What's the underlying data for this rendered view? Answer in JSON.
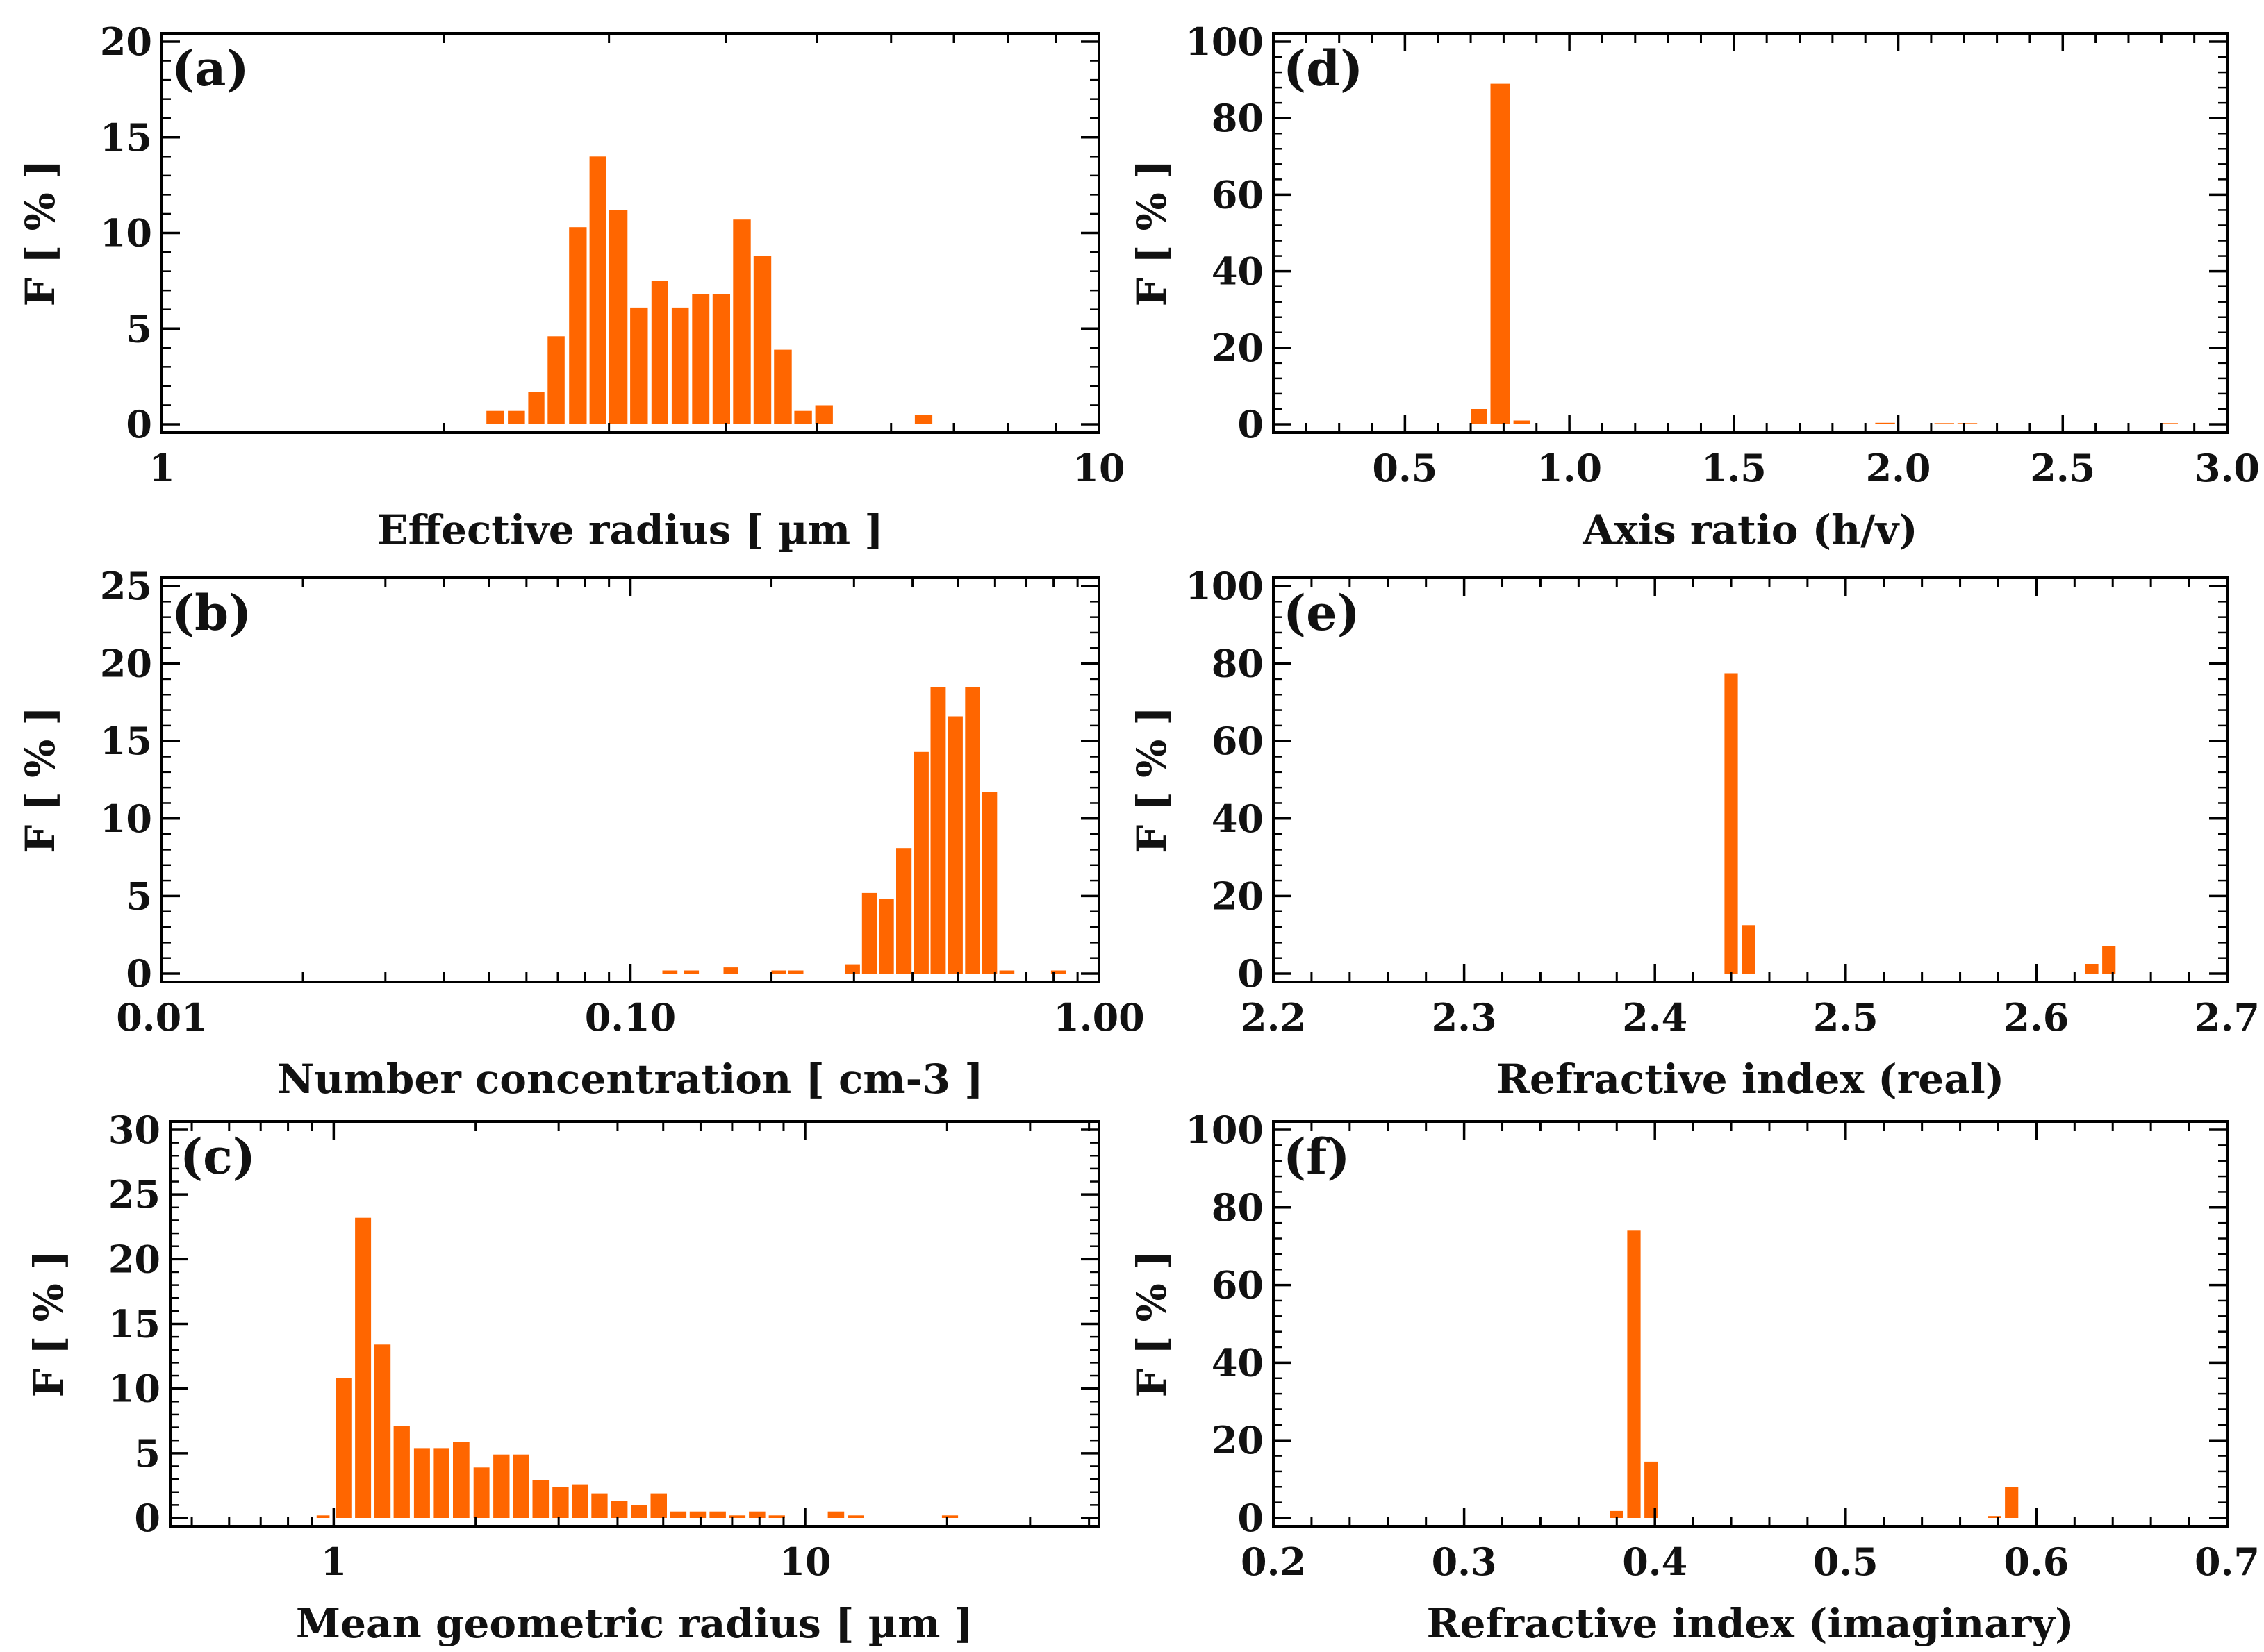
{
  "figure": {
    "bar_color": "#FF6600",
    "axis_color": "#000000"
  },
  "chart_data": [
    {
      "id": "a",
      "type": "bar",
      "panel_label": "(a)",
      "xscale": "log",
      "xlabel": "Effective radius [ µm  ]",
      "ylabel": "F [ % ]",
      "xlim": [
        1,
        10
      ],
      "ylim": [
        0,
        20
      ],
      "xticks": [
        1,
        10
      ],
      "xtick_labels": [
        "1",
        "10"
      ],
      "yticks": [
        0,
        5,
        10,
        15,
        20
      ],
      "ytick_labels": [
        "0",
        "5",
        "10",
        "15",
        "20"
      ],
      "bins": [
        [
          2.22,
          2.32
        ],
        [
          2.34,
          2.44
        ],
        [
          2.46,
          2.56
        ],
        [
          2.58,
          2.69
        ],
        [
          2.72,
          2.84
        ],
        [
          2.86,
          2.98
        ],
        [
          3.0,
          3.14
        ],
        [
          3.16,
          3.3
        ],
        [
          3.33,
          3.47
        ],
        [
          3.5,
          3.65
        ],
        [
          3.68,
          3.84
        ],
        [
          3.87,
          4.04
        ],
        [
          4.07,
          4.25
        ],
        [
          4.28,
          4.47
        ],
        [
          4.5,
          4.7
        ],
        [
          4.73,
          4.94
        ],
        [
          4.98,
          5.2
        ],
        [
          5.24,
          5.47
        ],
        [
          5.51,
          5.75
        ],
        [
          6.36,
          6.64
        ]
      ],
      "values": [
        0.7,
        0.7,
        1.7,
        4.6,
        10.3,
        14.0,
        11.2,
        6.1,
        7.5,
        6.1,
        6.8,
        6.8,
        10.7,
        8.8,
        3.9,
        0.7,
        1.0,
        0,
        0,
        0.5
      ]
    },
    {
      "id": "b",
      "type": "bar",
      "panel_label": "(b)",
      "xscale": "log",
      "xlabel": "Number concentration [ cm-3 ]",
      "ylabel": "F [ % ]",
      "xlim": [
        0.01,
        1.0
      ],
      "ylim": [
        0,
        25
      ],
      "xticks": [
        0.01,
        0.1,
        1.0
      ],
      "xtick_labels": [
        "0.01",
        "0.10",
        "1.00"
      ],
      "yticks": [
        0,
        5,
        10,
        15,
        20,
        25
      ],
      "ytick_labels": [
        "0",
        "5",
        "10",
        "15",
        "20",
        "25"
      ],
      "bins": [
        [
          0.117,
          0.126
        ],
        [
          0.13,
          0.14
        ],
        [
          0.158,
          0.17
        ],
        [
          0.2,
          0.215
        ],
        [
          0.217,
          0.234
        ],
        [
          0.287,
          0.309
        ],
        [
          0.312,
          0.336
        ],
        [
          0.339,
          0.365
        ],
        [
          0.369,
          0.398
        ],
        [
          0.402,
          0.433
        ],
        [
          0.437,
          0.471
        ],
        [
          0.476,
          0.512
        ],
        [
          0.518,
          0.557
        ],
        [
          0.563,
          0.606
        ],
        [
          0.613,
          0.66
        ],
        [
          0.667,
          0.717
        ],
        [
          0.725,
          0.78
        ],
        [
          0.79,
          0.85
        ]
      ],
      "values": [
        0.2,
        0.2,
        0.4,
        0.2,
        0.2,
        0.6,
        5.2,
        4.8,
        8.1,
        14.3,
        18.5,
        16.6,
        18.5,
        11.7,
        0.2,
        0,
        0,
        0.2
      ]
    },
    {
      "id": "c",
      "type": "bar",
      "panel_label": "(c)",
      "xscale": "log",
      "xlabel": "Mean geometric radius [ µm ]",
      "ylabel": "F [ % ]",
      "xlim": [
        0.45,
        42
      ],
      "ylim": [
        0,
        30
      ],
      "xticks": [
        1,
        10
      ],
      "xtick_labels": [
        "1",
        "10"
      ],
      "yticks": [
        0,
        5,
        10,
        15,
        20,
        25,
        30
      ],
      "ytick_labels": [
        "0",
        "5",
        "10",
        "15",
        "20",
        "25",
        "30"
      ],
      "bins": [
        [
          0.92,
          0.98
        ],
        [
          1.01,
          1.09
        ],
        [
          1.11,
          1.2
        ],
        [
          1.22,
          1.32
        ],
        [
          1.34,
          1.45
        ],
        [
          1.48,
          1.6
        ],
        [
          1.63,
          1.76
        ],
        [
          1.79,
          1.94
        ],
        [
          1.98,
          2.14
        ],
        [
          2.18,
          2.36
        ],
        [
          2.4,
          2.6
        ],
        [
          2.64,
          2.86
        ],
        [
          2.91,
          3.15
        ],
        [
          3.2,
          3.46
        ],
        [
          3.52,
          3.81
        ],
        [
          3.88,
          4.2
        ],
        [
          4.27,
          4.62
        ],
        [
          4.7,
          5.09
        ],
        [
          5.17,
          5.6
        ],
        [
          5.69,
          6.16
        ],
        [
          6.27,
          6.79
        ],
        [
          6.9,
          7.47
        ],
        [
          7.6,
          8.23
        ],
        [
          8.37,
          9.06
        ],
        [
          9.21,
          9.97
        ],
        [
          10.15,
          10.99
        ],
        [
          11.17,
          12.1
        ],
        [
          12.3,
          13.3
        ],
        [
          19.5,
          21.1
        ],
        [
          29.5,
          32
        ]
      ],
      "values": [
        0.2,
        10.8,
        23.2,
        13.4,
        7.1,
        5.4,
        5.4,
        5.9,
        3.9,
        4.9,
        4.9,
        2.9,
        2.4,
        2.6,
        1.9,
        1.3,
        1.0,
        1.9,
        0.5,
        0.5,
        0.5,
        0.2,
        0.5,
        0.2,
        0,
        0,
        0.5,
        0.2,
        0.2,
        0
      ]
    },
    {
      "id": "d",
      "type": "bar",
      "panel_label": "(d)",
      "xscale": "linear",
      "xlabel": "Axis ratio (h/v)",
      "ylabel": "F [ % ]",
      "xlim": [
        0.1,
        3.0
      ],
      "ylim": [
        0,
        100
      ],
      "xticks": [
        0.5,
        1.0,
        1.5,
        2.0,
        2.5,
        3.0
      ],
      "xtick_labels": [
        "0.5",
        "1.0",
        "1.5",
        "2.0",
        "2.5",
        "3.0"
      ],
      "yticks": [
        0,
        20,
        40,
        60,
        80,
        100
      ],
      "ytick_labels": [
        "0",
        "20",
        "40",
        "60",
        "80",
        "100"
      ],
      "bins": [
        [
          0.7,
          0.75
        ],
        [
          0.76,
          0.82
        ],
        [
          0.83,
          0.88
        ],
        [
          1.93,
          1.99
        ],
        [
          2.11,
          2.17
        ],
        [
          2.18,
          2.24
        ],
        [
          2.8,
          2.85
        ]
      ],
      "values": [
        4.0,
        89.0,
        1.0,
        0.4,
        0.3,
        0.3,
        0.3
      ]
    },
    {
      "id": "e",
      "type": "bar",
      "panel_label": "(e)",
      "xscale": "linear",
      "xlabel": "Refractive index (real)",
      "ylabel": "F [ % ]",
      "xlim": [
        2.2,
        2.7
      ],
      "ylim": [
        0,
        100
      ],
      "xticks": [
        2.2,
        2.3,
        2.4,
        2.5,
        2.6,
        2.7
      ],
      "xtick_labels": [
        "2.2",
        "2.3",
        "2.4",
        "2.5",
        "2.6",
        "2.7"
      ],
      "yticks": [
        0,
        20,
        40,
        60,
        80,
        100
      ],
      "ytick_labels": [
        "0",
        "20",
        "40",
        "60",
        "80",
        "100"
      ],
      "bins": [
        [
          2.4365,
          2.4435
        ],
        [
          2.4455,
          2.4525
        ],
        [
          2.6255,
          2.6325
        ],
        [
          2.6345,
          2.6415
        ]
      ],
      "values": [
        77.5,
        12.5,
        2.5,
        7.0
      ]
    },
    {
      "id": "f",
      "type": "bar",
      "panel_label": "(f)",
      "xscale": "linear",
      "xlabel": "Refractive index (imaginary)",
      "ylabel": "F [ % ]",
      "xlim": [
        0.2,
        0.7
      ],
      "ylim": [
        0,
        100
      ],
      "xticks": [
        0.2,
        0.3,
        0.4,
        0.5,
        0.6,
        0.7
      ],
      "xtick_labels": [
        "0.2",
        "0.3",
        "0.4",
        "0.5",
        "0.6",
        "0.7"
      ],
      "yticks": [
        0,
        20,
        40,
        60,
        80,
        100
      ],
      "ytick_labels": [
        "0",
        "20",
        "40",
        "60",
        "80",
        "100"
      ],
      "bins": [
        [
          0.3765,
          0.3835
        ],
        [
          0.3855,
          0.3925
        ],
        [
          0.3945,
          0.4015
        ],
        [
          0.5745,
          0.5815
        ],
        [
          0.5835,
          0.5905
        ]
      ],
      "values": [
        1.8,
        74.0,
        14.5,
        0.5,
        8.0
      ]
    }
  ]
}
